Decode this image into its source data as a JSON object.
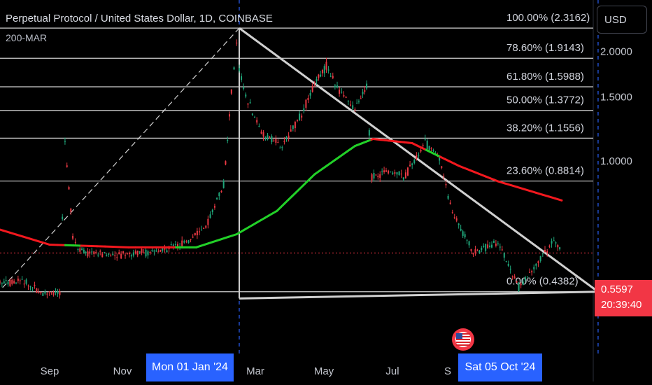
{
  "header": {
    "title": "Perpetual Protocol / United States Dollar, 1D, COINBASE",
    "indicator": "200-MAR"
  },
  "toolbar": {
    "currency_label": "USD"
  },
  "price_badge": {
    "price": "0.5597",
    "countdown": "20:39:40"
  },
  "colors": {
    "ma_above": "#22d028",
    "ma_below": "#f2181e",
    "price_line": "#f23645",
    "crosshair_label": "#2962ff",
    "grid": "#cfcfcf"
  },
  "chart_data": {
    "type": "candlestick",
    "title": "Perpetual Protocol / United States Dollar, 1D, COINBASE",
    "y_ticks": [
      "1.0000",
      "1.5000",
      "2.0000"
    ],
    "y_scale": "log",
    "ylim": [
      0.37,
      2.6
    ],
    "x_ticks": [
      "Sep",
      "Nov",
      "Mar",
      "May",
      "Jul",
      "S"
    ],
    "x_range": [
      "2023-07-03",
      "2024-11-09"
    ],
    "crosshair": {
      "date_label": "Mon 01 Jan '24",
      "end_label": "Sat 05 Oct '24"
    },
    "fib_levels": [
      {
        "label": "100.00% (2.3162)",
        "value": 2.3162
      },
      {
        "label": "78.60% (1.9143)",
        "value": 1.9143
      },
      {
        "label": "61.80% (1.5988)",
        "value": 1.5988
      },
      {
        "label": "50.00% (1.3772)",
        "value": 1.3772
      },
      {
        "label": "38.20% (1.1556)",
        "value": 1.1556
      },
      {
        "label": "23.60% (0.8814)",
        "value": 0.8814
      },
      {
        "label": "0.00% (0.4382)",
        "value": 0.4382
      }
    ],
    "current_price": 0.5597,
    "price_series": {
      "dates": [
        "2023-07-03",
        "2023-07-20",
        "2023-08-05",
        "2023-08-18",
        "2023-08-22",
        "2023-08-28",
        "2023-09-01",
        "2023-09-10",
        "2023-10-01",
        "2023-10-20",
        "2023-11-05",
        "2023-11-25",
        "2023-12-10",
        "2023-12-22",
        "2023-12-28",
        "2024-01-01",
        "2024-01-03",
        "2024-01-08",
        "2024-01-20",
        "2024-02-05",
        "2024-02-20",
        "2024-03-01",
        "2024-03-10",
        "2024-03-20",
        "2024-04-01",
        "2024-04-10",
        "2024-04-14",
        "2024-04-25",
        "2024-05-10",
        "2024-05-25",
        "2024-06-05",
        "2024-06-15",
        "2024-07-01",
        "2024-07-20",
        "2024-08-05",
        "2024-08-20",
        "2024-09-01",
        "2024-09-07"
      ],
      "close": [
        0.46,
        0.47,
        0.43,
        0.44,
        1.13,
        0.62,
        0.57,
        0.56,
        0.55,
        0.56,
        0.57,
        0.6,
        0.68,
        0.86,
        1.55,
        2.12,
        1.8,
        1.5,
        1.2,
        1.1,
        1.35,
        1.62,
        1.82,
        1.55,
        1.4,
        1.6,
        0.9,
        0.94,
        0.91,
        1.12,
        1.02,
        0.72,
        0.56,
        0.6,
        0.45,
        0.53,
        0.61,
        0.5597
      ]
    },
    "ma200": {
      "dates": [
        "2023-06-20",
        "2023-08-10",
        "2023-10-10",
        "2023-12-01",
        "2024-01-01",
        "2024-02-01",
        "2024-03-01",
        "2024-04-01",
        "2024-04-15",
        "2024-05-15",
        "2024-06-20",
        "2024-07-20",
        "2024-09-07"
      ],
      "values": [
        0.67,
        0.59,
        0.58,
        0.58,
        0.63,
        0.73,
        0.92,
        1.1,
        1.15,
        1.12,
        0.97,
        0.88,
        0.78
      ]
    },
    "triangle": [
      {
        "date": "2023-07-05",
        "value": 0.45
      },
      {
        "date": "2024-01-03",
        "value": 2.3162
      },
      {
        "date": "2024-10-05",
        "value": 0.4382
      },
      {
        "date": "2024-01-03",
        "value": 0.42
      }
    ]
  }
}
